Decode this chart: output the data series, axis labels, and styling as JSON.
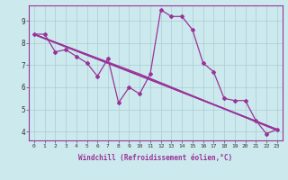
{
  "xlabel": "Windchill (Refroidissement éolien,°C)",
  "xlim": [
    -0.5,
    23.5
  ],
  "ylim": [
    3.6,
    9.7
  ],
  "yticks": [
    4,
    5,
    6,
    7,
    8,
    9
  ],
  "xticks": [
    0,
    1,
    2,
    3,
    4,
    5,
    6,
    7,
    8,
    9,
    10,
    11,
    12,
    13,
    14,
    15,
    16,
    17,
    18,
    19,
    20,
    21,
    22,
    23
  ],
  "bg_color": "#cce9ed",
  "line_color": "#993399",
  "grid_color": "#aacdd4",
  "main_x": [
    0,
    1,
    2,
    3,
    4,
    5,
    6,
    7,
    8,
    9,
    10,
    11,
    12,
    13,
    14,
    15,
    16,
    17,
    18,
    19,
    20,
    21,
    22,
    23
  ],
  "main_y": [
    8.4,
    8.4,
    7.6,
    7.7,
    7.4,
    7.1,
    6.5,
    7.3,
    5.3,
    6.0,
    5.7,
    6.6,
    9.5,
    9.2,
    9.2,
    8.6,
    7.1,
    6.7,
    5.5,
    5.4,
    5.4,
    4.5,
    3.9,
    4.1
  ],
  "trend_lines": [
    {
      "x": [
        0,
        23
      ],
      "y": [
        8.4,
        4.1
      ]
    },
    {
      "x": [
        0,
        10,
        23
      ],
      "y": [
        8.4,
        6.55,
        4.1
      ]
    },
    {
      "x": [
        0,
        10,
        23
      ],
      "y": [
        8.4,
        6.6,
        4.05
      ]
    },
    {
      "x": [
        0,
        10,
        23
      ],
      "y": [
        8.38,
        6.52,
        4.08
      ]
    }
  ],
  "marker": "D",
  "markersize": 2.0,
  "linewidth": 0.9,
  "xlabel_fontsize": 5.5,
  "tick_fontsize_x": 4.5,
  "tick_fontsize_y": 5.5
}
